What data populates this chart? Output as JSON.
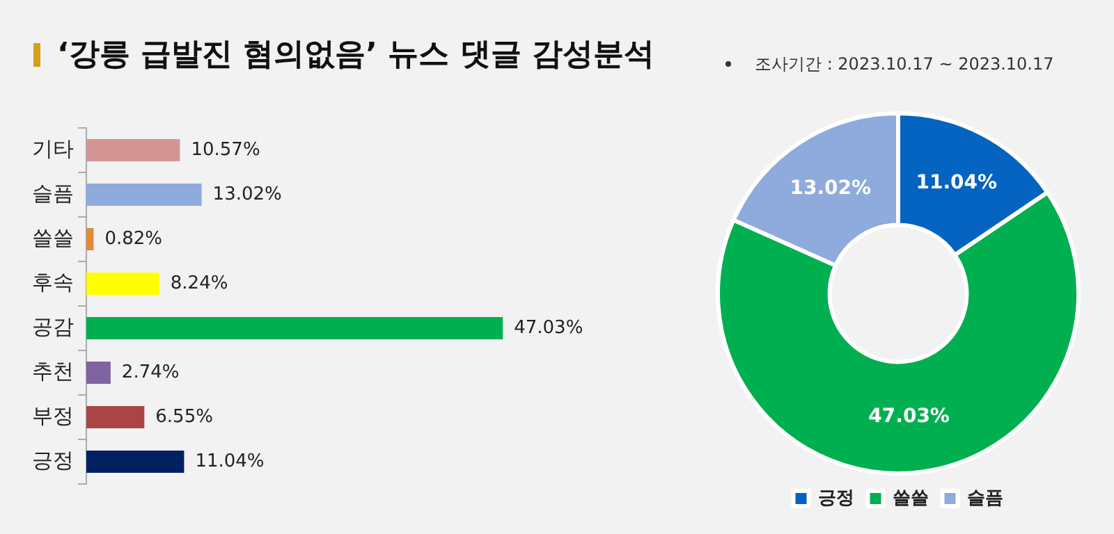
{
  "chart_data": [
    {
      "type": "bar",
      "title": "‘강릉 급발진 혐의없음’ 뉴스 댓글 감성분석",
      "orientation": "horizontal",
      "categories": [
        "기타",
        "슬픔",
        "쓸쓸",
        "후속",
        "공감",
        "추천",
        "부정",
        "긍정"
      ],
      "values": [
        10.57,
        13.02,
        0.82,
        8.24,
        47.03,
        2.74,
        6.55,
        11.04
      ],
      "colors": [
        "#d59595",
        "#8faadc",
        "#e08a3c",
        "#ffff00",
        "#00b050",
        "#8064a2",
        "#a94545",
        "#002060"
      ],
      "value_labels": [
        "10.57%",
        "13.02%",
        "0.82%",
        "8.24%",
        "47.03%",
        "2.74%",
        "6.55%",
        "11.04%"
      ],
      "legend": false
    },
    {
      "type": "donut",
      "annotations": [
        "조사기간 : 2023.10.17 ~ 2023.10.17"
      ],
      "categories": [
        "긍정",
        "쓸쓸",
        "슬픔"
      ],
      "values": [
        11.04,
        47.03,
        13.02
      ],
      "colors": [
        "#0563c1",
        "#00b050",
        "#8faadc"
      ],
      "value_labels": [
        "11.04%",
        "47.03%",
        "13.02%"
      ],
      "legend": "bottom"
    }
  ]
}
